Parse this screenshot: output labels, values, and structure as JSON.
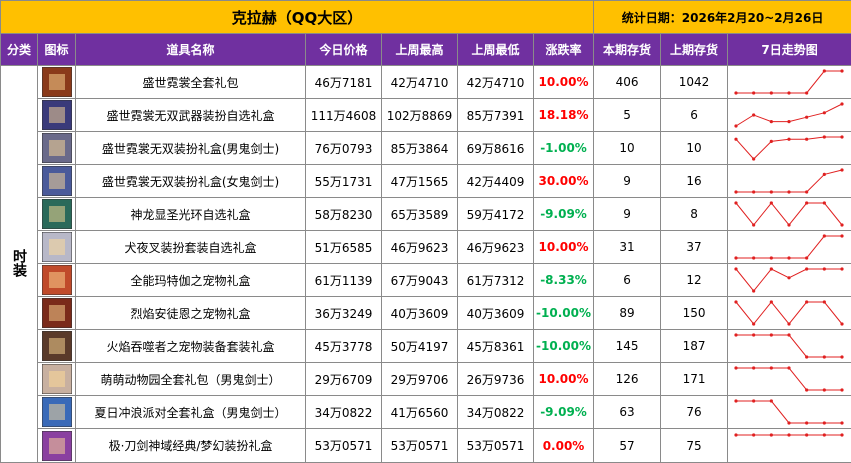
{
  "header": {
    "title": "克拉赫（QQ大区）",
    "date": "统计日期：2026年2月20~2月26日"
  },
  "columns": [
    "分类",
    "图标",
    "道具名称",
    "今日价格",
    "上周最高",
    "上周最低",
    "涨跌率",
    "本期存货",
    "上期存货",
    "7日走势图"
  ],
  "category": "时装",
  "trend_range": [
    0,
    10
  ],
  "trend_color": "#e02020",
  "rows": [
    {
      "name": "盛世霓裳全套礼包",
      "price": "46万7181",
      "high": "42万4710",
      "low": "42万4710",
      "change": "10.00%",
      "change_color": "#ff0000",
      "stock": "406",
      "prev_stock": "1042",
      "trend": [
        0,
        0,
        0,
        0,
        0,
        10,
        10
      ]
    },
    {
      "name": "盛世霓裳无双武器装扮自选礼盒",
      "price": "111万4608",
      "high": "102万8869",
      "low": "85万7391",
      "change": "18.18%",
      "change_color": "#ff0000",
      "stock": "5",
      "prev_stock": "6",
      "trend": [
        0,
        5,
        2,
        2,
        4,
        6,
        10
      ]
    },
    {
      "name": "盛世霓裳无双装扮礼盒(男鬼剑士)",
      "price": "76万0793",
      "high": "85万3864",
      "low": "69万8616",
      "change": "-1.00%",
      "change_color": "#00b050",
      "stock": "10",
      "prev_stock": "10",
      "trend": [
        9,
        0,
        8,
        9,
        9,
        10,
        10
      ]
    },
    {
      "name": "盛世霓裳无双装扮礼盒(女鬼剑士)",
      "price": "55万1731",
      "high": "47万1565",
      "low": "42万4409",
      "change": "30.00%",
      "change_color": "#ff0000",
      "stock": "9",
      "prev_stock": "16",
      "trend": [
        0,
        0,
        0,
        0,
        0,
        8,
        10
      ]
    },
    {
      "name": "神龙显圣光环自选礼盒",
      "price": "58万8230",
      "high": "65万3589",
      "low": "59万4172",
      "change": "-9.09%",
      "change_color": "#00b050",
      "stock": "9",
      "prev_stock": "8",
      "trend": [
        10,
        0,
        10,
        0,
        10,
        10,
        0
      ]
    },
    {
      "name": "犬夜叉装扮套装自选礼盒",
      "price": "51万6585",
      "high": "46万9623",
      "low": "46万9623",
      "change": "10.00%",
      "change_color": "#ff0000",
      "stock": "31",
      "prev_stock": "37",
      "trend": [
        0,
        0,
        0,
        0,
        0,
        10,
        10
      ]
    },
    {
      "name": "全能玛特伽之宠物礼盒",
      "price": "61万1139",
      "high": "67万9043",
      "low": "61万7312",
      "change": "-8.33%",
      "change_color": "#00b050",
      "stock": "6",
      "prev_stock": "12",
      "trend": [
        10,
        0,
        10,
        6,
        10,
        10,
        10
      ]
    },
    {
      "name": "烈焰安徒恩之宠物礼盒",
      "price": "36万3249",
      "high": "40万3609",
      "low": "40万3609",
      "change": "-10.00%",
      "change_color": "#00b050",
      "stock": "89",
      "prev_stock": "150",
      "trend": [
        10,
        0,
        10,
        0,
        10,
        10,
        0
      ]
    },
    {
      "name": "火焰吞噬者之宠物装备套装礼盒",
      "price": "45万3778",
      "high": "50万4197",
      "low": "45万8361",
      "change": "-10.00%",
      "change_color": "#00b050",
      "stock": "145",
      "prev_stock": "187",
      "trend": [
        10,
        10,
        10,
        10,
        0,
        0,
        0
      ]
    },
    {
      "name": "萌萌动物园全套礼包（男鬼剑士）",
      "price": "29万6709",
      "high": "29万9706",
      "low": "26万9736",
      "change": "10.00%",
      "change_color": "#ff0000",
      "stock": "126",
      "prev_stock": "171",
      "trend": [
        10,
        10,
        10,
        10,
        0,
        0,
        0
      ]
    },
    {
      "name": "夏日冲浪派对全套礼盒（男鬼剑士）",
      "price": "34万0822",
      "high": "41万6560",
      "low": "34万0822",
      "change": "-9.09%",
      "change_color": "#00b050",
      "stock": "63",
      "prev_stock": "76",
      "trend": [
        10,
        10,
        10,
        0,
        0,
        0,
        0
      ]
    },
    {
      "name": "极·刀剑神域经典/梦幻装扮礼盒",
      "price": "53万0571",
      "high": "53万0571",
      "low": "53万0571",
      "change": "0.00%",
      "change_color": "#ff0000",
      "stock": "57",
      "prev_stock": "75",
      "trend": [
        10,
        10,
        10,
        10,
        10,
        10,
        10
      ]
    }
  ]
}
